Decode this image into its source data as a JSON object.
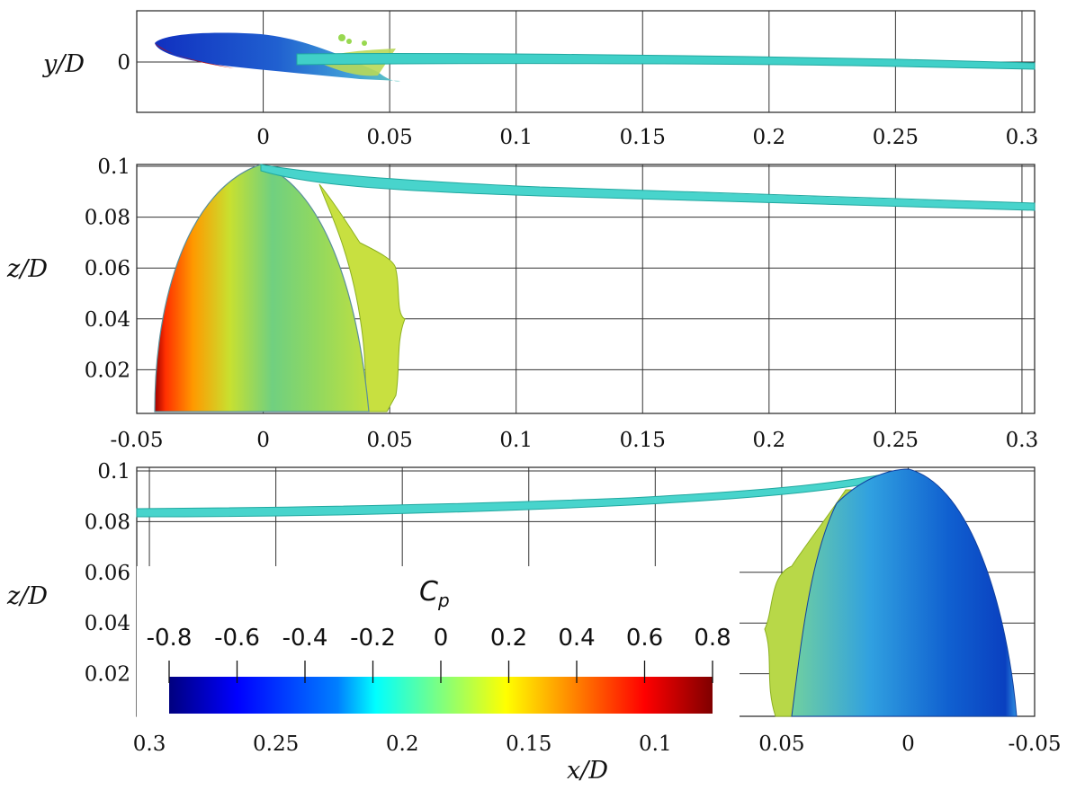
{
  "panels": [
    {
      "id": "top",
      "ylabel": "y/D",
      "xlim": [
        -0.05,
        0.305
      ],
      "xticks": [
        "0",
        "0.05",
        "0.1",
        "0.15",
        "0.2",
        "0.25",
        "0.3"
      ],
      "xtick_values": [
        0,
        0.05,
        0.1,
        0.15,
        0.2,
        0.25,
        0.3
      ],
      "yticks": [
        "0"
      ],
      "ytick_values": [
        0
      ]
    },
    {
      "id": "middle",
      "ylabel": "z/D",
      "xlim": [
        -0.05,
        0.305
      ],
      "xticks": [
        "-0.05",
        "0",
        "0.05",
        "0.1",
        "0.15",
        "0.2",
        "0.25",
        "0.3"
      ],
      "xtick_values": [
        -0.05,
        0,
        0.05,
        0.1,
        0.15,
        0.2,
        0.25,
        0.3
      ],
      "yticks": [
        "0.1",
        "0.08",
        "0.06",
        "0.04",
        "0.02"
      ],
      "ytick_values": [
        0.1,
        0.08,
        0.06,
        0.04,
        0.02
      ]
    },
    {
      "id": "bottom",
      "ylabel": "z/D",
      "xlabel": "x/D",
      "xlim": [
        0.305,
        -0.05
      ],
      "xticks": [
        "0.3",
        "0.25",
        "0.2",
        "0.15",
        "0.1",
        "0.05",
        "0",
        "-0.05"
      ],
      "xtick_values": [
        0.3,
        0.25,
        0.2,
        0.15,
        0.1,
        0.05,
        0,
        -0.05
      ],
      "yticks": [
        "0.1",
        "0.08",
        "0.06",
        "0.04",
        "0.02"
      ],
      "ytick_values": [
        0.1,
        0.08,
        0.06,
        0.04,
        0.02
      ]
    }
  ],
  "colorbar": {
    "title": "C",
    "title_sub": "p",
    "range": [
      -0.8,
      0.8
    ],
    "ticks": [
      "-0.8",
      "-0.6",
      "-0.4",
      "-0.2",
      "0",
      "0.2",
      "0.4",
      "0.6",
      "0.8"
    ],
    "colors": [
      "#00007f",
      "#0000ff",
      "#007fff",
      "#00ffff",
      "#7fff7f",
      "#ffff00",
      "#ff7f00",
      "#ff0000",
      "#7f0000"
    ]
  }
}
